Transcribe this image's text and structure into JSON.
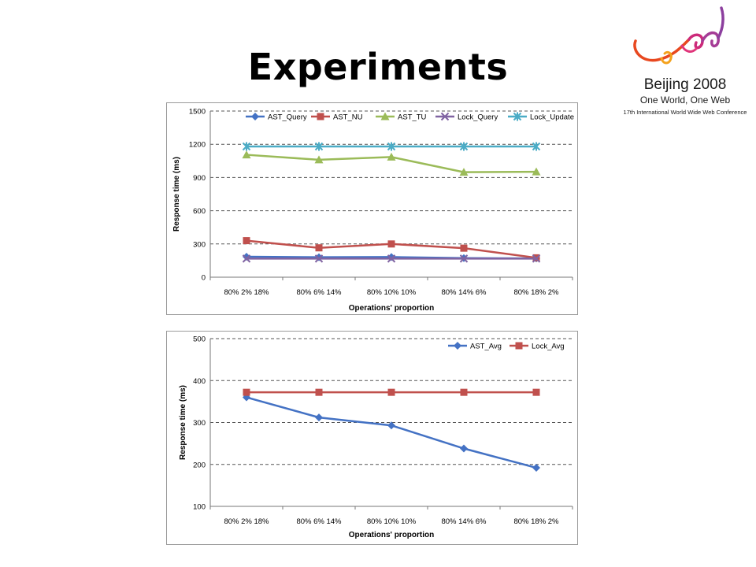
{
  "slide": {
    "title": "Experiments"
  },
  "logo": {
    "year": "Beijing 2008",
    "slogan": "One World, One Web",
    "conference": "17th International World Wide Web Conference"
  },
  "chart_data": [
    {
      "type": "line",
      "title": "",
      "xlabel": "Operations' proportion",
      "ylabel": "Response time (ms)",
      "categories": [
        "80% 2% 18%",
        "80% 6% 14%",
        "80% 10% 10%",
        "80% 14% 6%",
        "80% 18% 2%"
      ],
      "ylim": [
        0,
        1500
      ],
      "yticks": [
        0,
        300,
        600,
        900,
        1200,
        1500
      ],
      "grid": "horizontal-dashed",
      "legend": "top",
      "series": [
        {
          "name": "AST_Query",
          "color": "#4472c4",
          "marker": "diamond",
          "values": [
            185,
            180,
            182,
            172,
            170
          ]
        },
        {
          "name": "AST_NU",
          "color": "#c0504d",
          "marker": "square",
          "values": [
            330,
            265,
            300,
            262,
            175
          ]
        },
        {
          "name": "AST_TU",
          "color": "#9bbb59",
          "marker": "triangle",
          "values": [
            1105,
            1060,
            1085,
            948,
            952
          ]
        },
        {
          "name": "Lock_Query",
          "color": "#8064a2",
          "marker": "x",
          "values": [
            168,
            168,
            168,
            168,
            168
          ]
        },
        {
          "name": "Lock_Update",
          "color": "#4bacc6",
          "marker": "star",
          "values": [
            1180,
            1180,
            1180,
            1180,
            1180
          ]
        }
      ]
    },
    {
      "type": "line",
      "title": "",
      "xlabel": "Operations' proportion",
      "ylabel": "Response time (ms)",
      "categories": [
        "80% 2% 18%",
        "80% 6% 14%",
        "80% 10% 10%",
        "80% 14% 6%",
        "80% 18% 2%"
      ],
      "ylim": [
        100,
        500
      ],
      "yticks": [
        100,
        200,
        300,
        400,
        500
      ],
      "grid": "horizontal-dashed",
      "legend": "top-right",
      "series": [
        {
          "name": "AST_Avg",
          "color": "#4472c4",
          "marker": "diamond",
          "values": [
            360,
            312,
            293,
            238,
            192
          ]
        },
        {
          "name": "Lock_Avg",
          "color": "#c0504d",
          "marker": "square",
          "values": [
            372,
            372,
            372,
            372,
            372
          ]
        }
      ]
    }
  ]
}
